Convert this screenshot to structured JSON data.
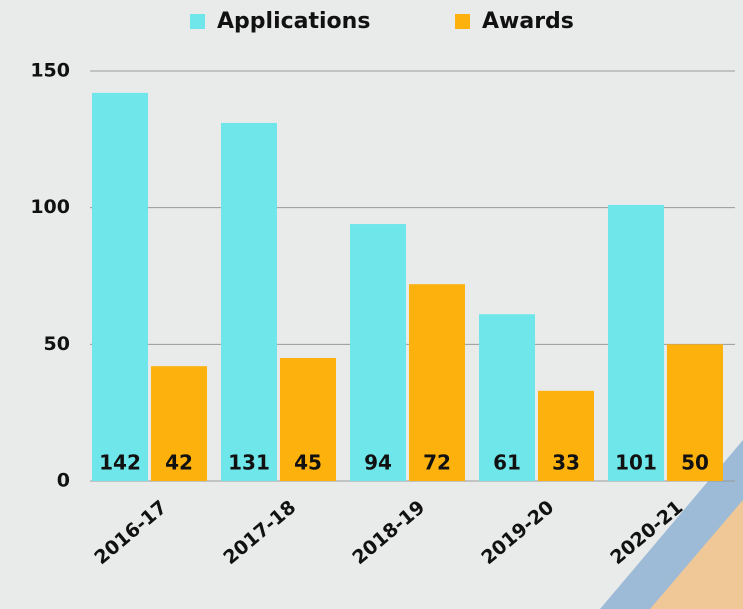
{
  "chart_data": {
    "type": "bar",
    "categories": [
      "2016-17",
      "2017-18",
      "2018-19",
      "2019-20",
      "2020-21"
    ],
    "series": [
      {
        "name": "Applications",
        "color": "#6ee6ea",
        "values": [
          142,
          131,
          94,
          61,
          101
        ]
      },
      {
        "name": "Awards",
        "color": "#fdb10d",
        "values": [
          42,
          45,
          72,
          33,
          50
        ]
      }
    ],
    "ylim": [
      0,
      150
    ],
    "yticks": [
      0,
      50,
      100,
      150
    ],
    "grid": true,
    "legend": "top"
  }
}
